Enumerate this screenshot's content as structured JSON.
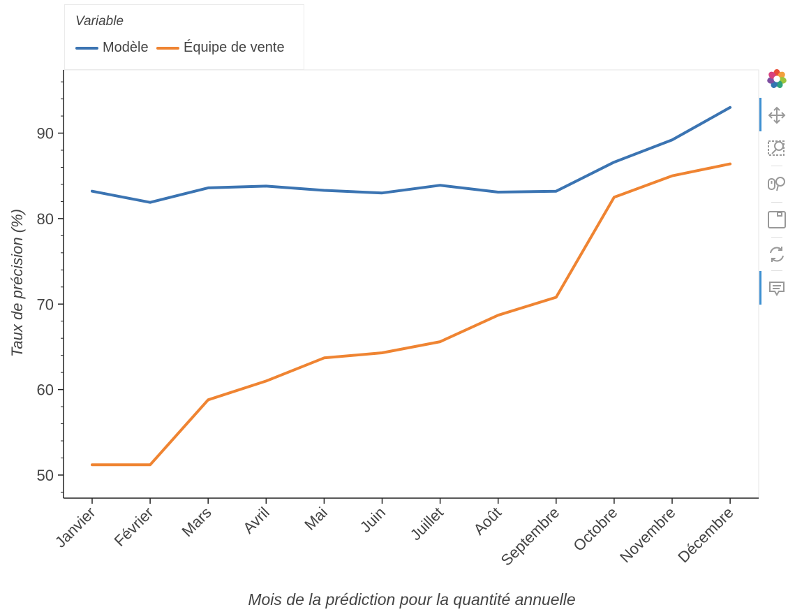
{
  "legend": {
    "title": "Variable",
    "items": [
      {
        "label": "Modèle",
        "color": "#3b74b2"
      },
      {
        "label": "Équipe de vente",
        "color": "#ef8432"
      }
    ]
  },
  "toolbar": {
    "icons": [
      "bokeh-logo-icon",
      "pan-icon",
      "box-zoom-icon",
      "wheel-zoom-icon",
      "save-icon",
      "reset-icon",
      "hover-icon"
    ]
  },
  "chart_data": {
    "type": "line",
    "categories": [
      "Janvier",
      "Février",
      "Mars",
      "Avril",
      "Mai",
      "Juin",
      "Juillet",
      "Août",
      "Septembre",
      "Octobre",
      "Novembre",
      "Décembre"
    ],
    "series": [
      {
        "name": "Modèle",
        "color": "#3b74b2",
        "values": [
          83.2,
          81.9,
          83.6,
          83.8,
          83.3,
          83.0,
          83.9,
          83.1,
          83.2,
          86.6,
          89.2,
          93.0
        ]
      },
      {
        "name": "Équipe de vente",
        "color": "#ef8432",
        "values": [
          51.2,
          51.2,
          58.8,
          61.0,
          63.7,
          64.3,
          65.6,
          68.7,
          70.8,
          82.5,
          85.0,
          86.4
        ]
      }
    ],
    "xlabel": "Mois de la prédiction pour la quantité annuelle",
    "ylabel": "Taux de précision (%)",
    "ylim": [
      47.3,
      97.4
    ],
    "yticks": [
      50,
      60,
      70,
      80,
      90
    ],
    "grid": false,
    "legend_position": "top-left, outside plot"
  }
}
